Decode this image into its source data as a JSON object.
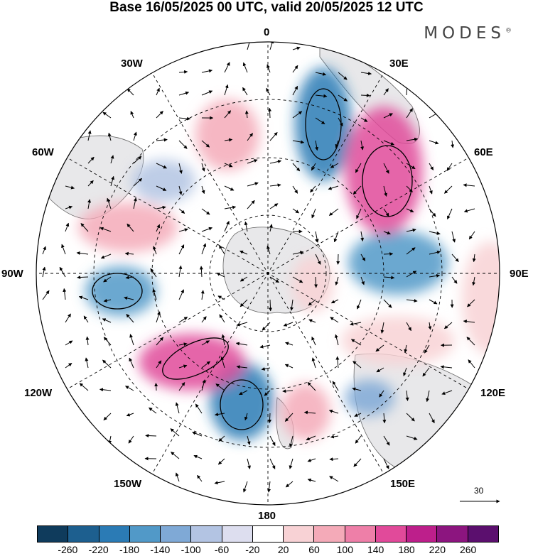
{
  "title": "Base 16/05/2025 00 UTC, valid 20/05/2025 12 UTC",
  "brand": {
    "name": "MODES",
    "mark": "®"
  },
  "longitude_labels": {
    "lon_0": "0",
    "lon_30e": "30E",
    "lon_60e": "60E",
    "lon_90e": "90E",
    "lon_120e": "120E",
    "lon_150e": "150E",
    "lon_180": "180",
    "lon_150w": "150W",
    "lon_120w": "120W",
    "lon_90w": "90W",
    "lon_60w": "60W",
    "lon_30w": "30W"
  },
  "vector_scale": {
    "value": "30"
  },
  "colorbar": {
    "colors": [
      "#0f3b5c",
      "#1d5f8f",
      "#2b7bb5",
      "#5199c8",
      "#7fa9d6",
      "#b3c4e3",
      "#dddeef",
      "#ffffff",
      "#f8d2d5",
      "#f4aab8",
      "#ee7fa8",
      "#e14a9a",
      "#bd1f8b",
      "#8c157f",
      "#5b0f6e"
    ],
    "tick_labels": [
      "-260",
      "-220",
      "-180",
      "-140",
      "-100",
      "-60",
      "-20",
      "20",
      "60",
      "100",
      "140",
      "180",
      "220",
      "260"
    ]
  },
  "anomaly_features": [
    {
      "label": "negative",
      "value": -200,
      "color": "#2b7bb5"
    },
    {
      "label": "positive",
      "value": 200,
      "color": "#bd1f8b"
    }
  ]
}
